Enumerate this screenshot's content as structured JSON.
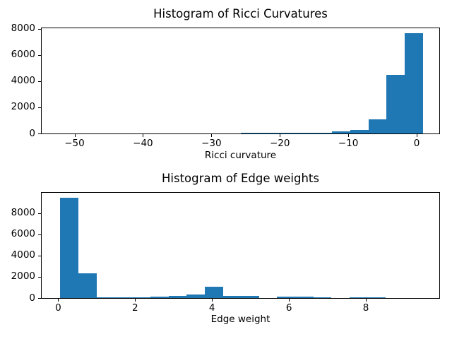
{
  "figure": {
    "background": "#ffffff",
    "bar_color": "#1f77b4",
    "spine_color": "#000000",
    "text_color": "#000000"
  },
  "chart_data": [
    {
      "type": "bar",
      "subtype": "histogram",
      "title": "Histogram of Ricci Curvatures",
      "xlabel": "Ricci curvature",
      "ylabel": "",
      "grid": false,
      "legend": false,
      "xlim": [
        -54.8,
        3.3
      ],
      "ylim": [
        0,
        8030
      ],
      "xticks": [
        {
          "value": -50,
          "label": "−50"
        },
        {
          "value": -40,
          "label": "−40"
        },
        {
          "value": -30,
          "label": "−30"
        },
        {
          "value": -20,
          "label": "−20"
        },
        {
          "value": -10,
          "label": "−10"
        },
        {
          "value": 0,
          "label": "0"
        }
      ],
      "yticks": [
        {
          "value": 0,
          "label": "0"
        },
        {
          "value": 2000,
          "label": "2000"
        },
        {
          "value": 4000,
          "label": "4000"
        },
        {
          "value": 6000,
          "label": "6000"
        },
        {
          "value": 8000,
          "label": "8000"
        }
      ],
      "bin_edges": [
        -52.2,
        -49.55,
        -46.9,
        -44.24,
        -41.59,
        -38.93,
        -36.28,
        -33.62,
        -30.97,
        -28.31,
        -25.66,
        -23.0,
        -20.35,
        -17.69,
        -15.04,
        -12.38,
        -9.73,
        -7.07,
        -4.42,
        -1.76,
        0.89
      ],
      "counts": [
        2,
        1,
        1,
        1,
        1,
        2,
        2,
        3,
        5,
        8,
        60,
        50,
        50,
        55,
        75,
        150,
        280,
        1080,
        4450,
        7650
      ]
    },
    {
      "type": "bar",
      "subtype": "histogram",
      "title": "Histogram of Edge weights",
      "xlabel": "Edge weight",
      "ylabel": "",
      "grid": false,
      "legend": false,
      "xlim": [
        -0.43,
        9.91
      ],
      "ylim": [
        0,
        9920
      ],
      "xticks": [
        {
          "value": 0,
          "label": "0"
        },
        {
          "value": 2,
          "label": "2"
        },
        {
          "value": 4,
          "label": "4"
        },
        {
          "value": 6,
          "label": "6"
        },
        {
          "value": 8,
          "label": "8"
        }
      ],
      "yticks": [
        {
          "value": 0,
          "label": "0"
        },
        {
          "value": 2000,
          "label": "2000"
        },
        {
          "value": 4000,
          "label": "4000"
        },
        {
          "value": 6000,
          "label": "6000"
        },
        {
          "value": 8000,
          "label": "8000"
        }
      ],
      "bin_edges": [
        0.05,
        0.52,
        0.99,
        1.46,
        1.93,
        2.4,
        2.87,
        3.34,
        3.81,
        4.28,
        4.75,
        5.22,
        5.69,
        6.16,
        6.63,
        7.1,
        7.57,
        8.04,
        8.51,
        8.98,
        9.45
      ],
      "counts": [
        9450,
        2350,
        35,
        35,
        60,
        130,
        200,
        330,
        1070,
        230,
        230,
        30,
        140,
        110,
        90,
        10,
        70,
        70,
        10,
        5
      ]
    }
  ]
}
